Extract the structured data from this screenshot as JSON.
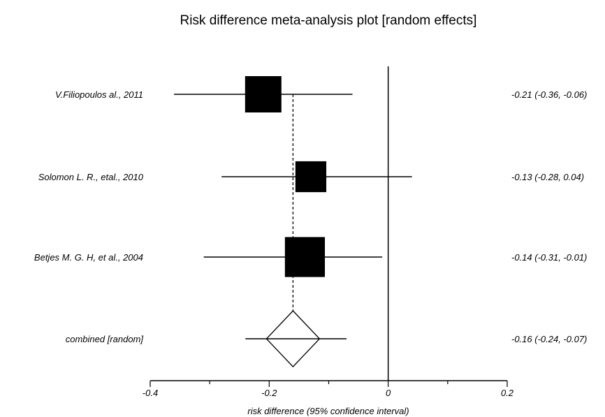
{
  "chart_data": {
    "type": "forest",
    "title": "Risk difference meta-analysis plot [random effects]",
    "xlabel": "risk difference (95% confidence interval)",
    "xlim": [
      -0.4,
      0.2
    ],
    "xticks": [
      -0.4,
      -0.2,
      0,
      0.2
    ],
    "xtick_labels": [
      "-0.4",
      "-0.2",
      "0",
      "0.2"
    ],
    "studies": [
      {
        "label": "V.Filiopoulos al., 2011",
        "estimate": -0.21,
        "lower": -0.36,
        "upper": -0.06,
        "ci_text": "-0.21 (-0.36, -0.06)",
        "weight": 1.0
      },
      {
        "label": "Solomon L. R., etal., 2010",
        "estimate": -0.13,
        "lower": -0.28,
        "upper": 0.04,
        "ci_text": "-0.13 (-0.28, 0.04)",
        "weight": 0.85
      },
      {
        "label": "Betjes M. G. H, et al., 2004",
        "estimate": -0.14,
        "lower": -0.31,
        "upper": -0.01,
        "ci_text": "-0.14 (-0.31, -0.01)",
        "weight": 1.1
      }
    ],
    "combined": {
      "label": "combined [random]",
      "estimate": -0.16,
      "lower": -0.24,
      "upper": -0.07,
      "ci_text": "-0.16 (-0.24, -0.07)"
    },
    "null_line": 0
  }
}
